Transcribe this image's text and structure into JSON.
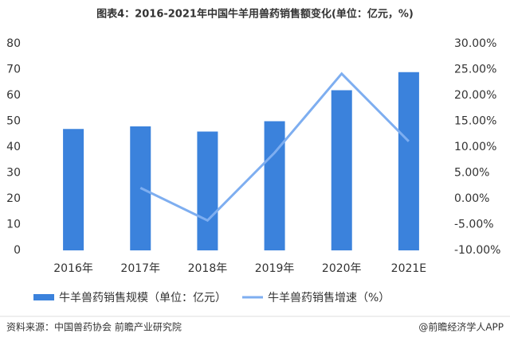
{
  "chart_data": {
    "type": "bar_line",
    "title": "图表4：2016-2021年中国牛羊用兽药销售额变化(单位：亿元，%)",
    "categories": [
      "2016年",
      "2017年",
      "2018年",
      "2019年",
      "2020年",
      "2021E"
    ],
    "series": [
      {
        "name": "牛羊兽药销售规模（单位：亿元）",
        "color": "#3b82dc",
        "type": "bar",
        "values": [
          47,
          48,
          46,
          50,
          62,
          69
        ]
      },
      {
        "name": "牛羊兽药销售增速（%）",
        "color": "#7eaef0",
        "type": "line",
        "axis": "y2",
        "values": [
          null,
          2.1,
          -4.2,
          8.9,
          24.2,
          11.1
        ]
      }
    ],
    "ylim": [
      0,
      80
    ],
    "yticks": [
      0,
      10,
      20,
      30,
      40,
      50,
      60,
      70,
      80
    ],
    "y2lim": [
      -10,
      30
    ],
    "y2ticks": [
      {
        "value": -10,
        "label": "-10.00%"
      },
      {
        "value": -5,
        "label": "-5.00%"
      },
      {
        "value": 0,
        "label": "0.00%"
      },
      {
        "value": 5,
        "label": "5.00%"
      },
      {
        "value": 10,
        "label": "10.00%"
      },
      {
        "value": 15,
        "label": "15.00%"
      },
      {
        "value": 20,
        "label": "20.00%"
      },
      {
        "value": 25,
        "label": "25.00%"
      },
      {
        "value": 30,
        "label": "30.00%"
      }
    ],
    "grid": false,
    "source": "资料来源：中国兽药协会 前瞻产业研究院",
    "watermark": "@前瞻经济学人APP"
  }
}
